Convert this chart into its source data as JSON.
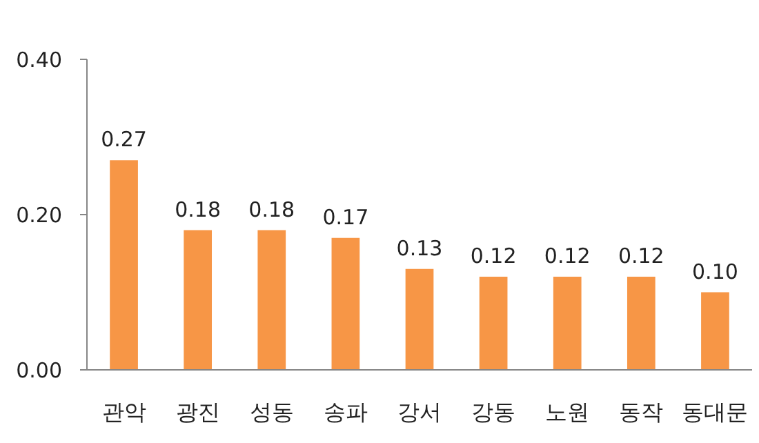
{
  "chart_data": {
    "type": "bar",
    "categories": [
      "관악",
      "광진",
      "성동",
      "송파",
      "강서",
      "강동",
      "노원",
      "동작",
      "동대문"
    ],
    "values": [
      0.27,
      0.18,
      0.18,
      0.17,
      0.13,
      0.12,
      0.12,
      0.12,
      0.1
    ],
    "color": "#f79646",
    "ylim": [
      0,
      0.4
    ],
    "yticks": [
      {
        "value": 0,
        "label": "0.00"
      },
      {
        "value": 0.2,
        "label": "0.20"
      },
      {
        "value": 0.4,
        "label": "0.40"
      }
    ],
    "value_labels": [
      "0.27",
      "0.18",
      "0.18",
      "0.17",
      "0.13",
      "0.12",
      "0.12",
      "0.12",
      "0.10"
    ]
  }
}
